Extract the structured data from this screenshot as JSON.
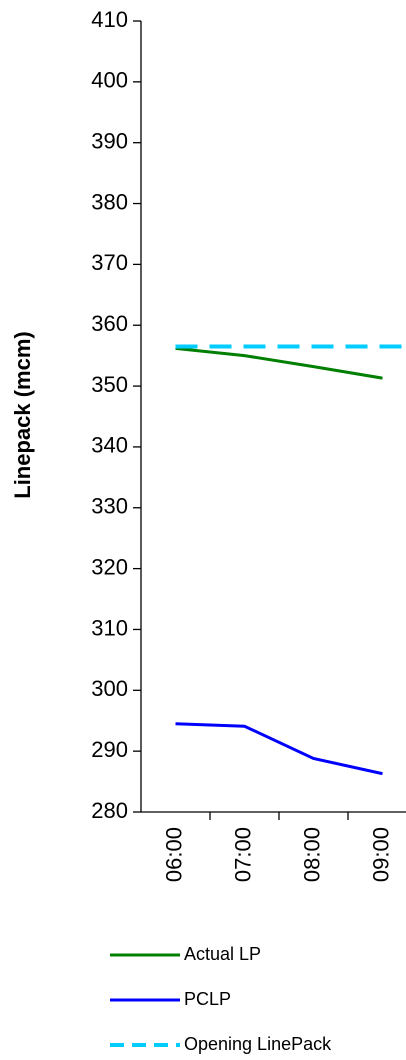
{
  "chart_data": {
    "type": "line",
    "y_label": "Linepack (mcm)",
    "categories": [
      "06:00",
      "07:00",
      "08:00",
      "09:00"
    ],
    "series": [
      {
        "name": "Actual LP",
        "color": "#007f00",
        "values": [
          356.2,
          355.0,
          353.2,
          351.3
        ]
      },
      {
        "name": "PCLP",
        "color": "#0000ff",
        "values": [
          294.5,
          294.1,
          288.8,
          286.3
        ]
      },
      {
        "name": "Opening LinePack",
        "color": "#00ccff",
        "dashed": true,
        "values": [
          356.5,
          356.5,
          356.5,
          356.5
        ]
      }
    ],
    "ylim": [
      280,
      410
    ],
    "yticks": [
      280,
      290,
      300,
      310,
      320,
      330,
      340,
      350,
      360,
      370,
      380,
      390,
      400,
      410
    ]
  }
}
